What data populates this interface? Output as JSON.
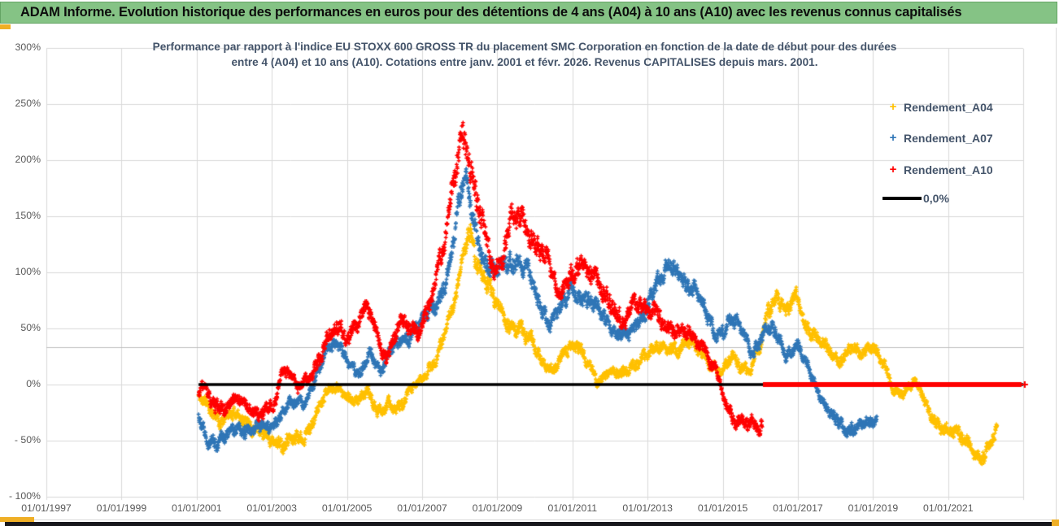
{
  "header": {
    "title": "ADAM Informe. Evolution historique des performances en euros pour des détentions de 4 ans (A04) à 10 ans (A10) avec les revenus connus capitalisés"
  },
  "chart_data": {
    "type": "scatter",
    "title_line1": "Performance par rapport à l'indice EU STOXX 600 GROSS TR  du placement SMC Corporation en fonction de la date de début pour des durées",
    "title_line2": "entre 4 (A04) et 10 ans (A10).  Cotations entre janv. 2001 et févr. 2026.  Revenus CAPITALISES depuis mars. 2001.",
    "xlabel": "",
    "ylabel": "",
    "ylim": [
      -100,
      300
    ],
    "grid": true,
    "legend_position": "right",
    "y_ticks": [
      {
        "label": "300%",
        "value": 300
      },
      {
        "label": "250%",
        "value": 250
      },
      {
        "label": "200%",
        "value": 200
      },
      {
        "label": "150%",
        "value": 150
      },
      {
        "label": "100%",
        "value": 100
      },
      {
        "label": "50%",
        "value": 50
      },
      {
        "label": "0%",
        "value": 0
      },
      {
        "label": "- 50%",
        "value": -50
      },
      {
        "label": "- 100%",
        "value": -100
      }
    ],
    "x_ticks": [
      {
        "label": "01/01/1997",
        "year": 1997
      },
      {
        "label": "01/01/1999",
        "year": 1999
      },
      {
        "label": "01/01/2001",
        "year": 2001
      },
      {
        "label": "01/01/2003",
        "year": 2003
      },
      {
        "label": "01/01/2005",
        "year": 2005
      },
      {
        "label": "01/01/2007",
        "year": 2007
      },
      {
        "label": "01/01/2009",
        "year": 2009
      },
      {
        "label": "01/01/2011",
        "year": 2011
      },
      {
        "label": "01/01/2013",
        "year": 2013
      },
      {
        "label": "01/01/2015",
        "year": 2015
      },
      {
        "label": "01/01/2017",
        "year": 2017
      },
      {
        "label": "01/01/2019",
        "year": 2019
      },
      {
        "label": "01/01/2021",
        "year": 2021
      }
    ],
    "x_gridline_years": [
      1997,
      1999,
      2001,
      2003,
      2005,
      2007,
      2009,
      2011,
      2013,
      2015,
      2017,
      2019,
      2021,
      2023
    ],
    "reference_lines": [
      {
        "name": "zero-line",
        "value": 0,
        "color": "#000000",
        "x_start": 2001.05,
        "x_end": 2023.0,
        "thickness": 3.5
      },
      {
        "name": "grey-33-line",
        "value": 33.5,
        "color": "#BFBFBF",
        "x_start": 1997,
        "x_end": 2023.0,
        "thickness": 1
      }
    ],
    "flat_segment": {
      "series": "Rendement_A10",
      "value": 0,
      "x_start": 2016.07,
      "x_end": 2022.95,
      "color": "#FF0000",
      "thickness": 6
    },
    "series": [
      {
        "name": "Rendement_A04",
        "color": "#FFC000",
        "marker": "+",
        "seed": 11,
        "points_per_year": 160,
        "jitter": 3.0,
        "wiggle": {
          "a1": 5,
          "f1": 0.9,
          "p1": 0.15,
          "a2": 2.5,
          "f2": 3.7,
          "p2": 0.6
        },
        "anchors": [
          [
            2001.05,
            -12
          ],
          [
            2001.3,
            -22
          ],
          [
            2001.6,
            -32
          ],
          [
            2001.9,
            -22
          ],
          [
            2002.1,
            -28
          ],
          [
            2002.4,
            -42
          ],
          [
            2002.7,
            -38
          ],
          [
            2003.0,
            -46
          ],
          [
            2003.3,
            -56
          ],
          [
            2003.6,
            -50
          ],
          [
            2003.9,
            -42
          ],
          [
            2004.1,
            -30
          ],
          [
            2004.4,
            -10
          ],
          [
            2004.7,
            -4
          ],
          [
            2005.0,
            -8
          ],
          [
            2005.3,
            -13
          ],
          [
            2005.55,
            -8
          ],
          [
            2005.8,
            -28
          ],
          [
            2006.1,
            -14
          ],
          [
            2006.4,
            -20
          ],
          [
            2006.7,
            -8
          ],
          [
            2007.0,
            4
          ],
          [
            2007.3,
            22
          ],
          [
            2007.6,
            45
          ],
          [
            2007.9,
            75
          ],
          [
            2008.1,
            115
          ],
          [
            2008.25,
            140
          ],
          [
            2008.45,
            115
          ],
          [
            2008.7,
            92
          ],
          [
            2009.0,
            68
          ],
          [
            2009.3,
            52
          ],
          [
            2009.6,
            55
          ],
          [
            2009.9,
            38
          ],
          [
            2010.2,
            15
          ],
          [
            2010.5,
            14
          ],
          [
            2010.8,
            35
          ],
          [
            2011.1,
            32
          ],
          [
            2011.4,
            18
          ],
          [
            2011.7,
            5
          ],
          [
            2012.0,
            14
          ],
          [
            2012.3,
            6
          ],
          [
            2012.6,
            15
          ],
          [
            2012.9,
            28
          ],
          [
            2013.2,
            34
          ],
          [
            2013.5,
            28
          ],
          [
            2013.8,
            32
          ],
          [
            2014.1,
            42
          ],
          [
            2014.4,
            28
          ],
          [
            2014.7,
            12
          ],
          [
            2015.0,
            16
          ],
          [
            2015.25,
            30
          ],
          [
            2015.5,
            12
          ],
          [
            2015.75,
            8
          ],
          [
            2016.0,
            38
          ],
          [
            2016.2,
            70
          ],
          [
            2016.45,
            80
          ],
          [
            2016.7,
            60
          ],
          [
            2016.95,
            78
          ],
          [
            2017.2,
            55
          ],
          [
            2017.5,
            45
          ],
          [
            2017.8,
            28
          ],
          [
            2018.1,
            18
          ],
          [
            2018.45,
            40
          ],
          [
            2018.7,
            28
          ],
          [
            2019.0,
            30
          ],
          [
            2019.3,
            18
          ],
          [
            2019.6,
            -5
          ],
          [
            2019.9,
            -8
          ],
          [
            2020.1,
            2
          ],
          [
            2020.4,
            -18
          ],
          [
            2020.7,
            -32
          ],
          [
            2021.0,
            -42
          ],
          [
            2021.3,
            -48
          ],
          [
            2021.6,
            -55
          ],
          [
            2021.9,
            -62
          ],
          [
            2022.1,
            -55
          ],
          [
            2022.3,
            -45
          ]
        ]
      },
      {
        "name": "Rendement_A07",
        "color": "#2E75B6",
        "marker": "+",
        "seed": 22,
        "points_per_year": 160,
        "jitter": 3.0,
        "wiggle": {
          "a1": 5,
          "f1": 1.1,
          "p1": 0.4,
          "a2": 2.5,
          "f2": 4.3,
          "p2": 0.1
        },
        "anchors": [
          [
            2001.05,
            -25
          ],
          [
            2001.3,
            -45
          ],
          [
            2001.55,
            -55
          ],
          [
            2001.8,
            -48
          ],
          [
            2002.1,
            -32
          ],
          [
            2002.4,
            -45
          ],
          [
            2002.7,
            -38
          ],
          [
            2003.0,
            -35
          ],
          [
            2003.3,
            -25
          ],
          [
            2003.6,
            -18
          ],
          [
            2003.9,
            -12
          ],
          [
            2004.2,
            8
          ],
          [
            2004.5,
            30
          ],
          [
            2004.8,
            40
          ],
          [
            2005.1,
            15
          ],
          [
            2005.35,
            5
          ],
          [
            2005.6,
            32
          ],
          [
            2005.9,
            12
          ],
          [
            2006.2,
            28
          ],
          [
            2006.5,
            42
          ],
          [
            2006.8,
            50
          ],
          [
            2007.1,
            58
          ],
          [
            2007.4,
            75
          ],
          [
            2007.7,
            105
          ],
          [
            2008.0,
            160
          ],
          [
            2008.15,
            182
          ],
          [
            2008.35,
            150
          ],
          [
            2008.6,
            118
          ],
          [
            2008.9,
            95
          ],
          [
            2009.2,
            108
          ],
          [
            2009.5,
            115
          ],
          [
            2009.8,
            98
          ],
          [
            2010.1,
            75
          ],
          [
            2010.4,
            58
          ],
          [
            2010.7,
            65
          ],
          [
            2011.0,
            85
          ],
          [
            2011.3,
            80
          ],
          [
            2011.6,
            68
          ],
          [
            2011.9,
            55
          ],
          [
            2012.2,
            48
          ],
          [
            2012.5,
            42
          ],
          [
            2012.8,
            55
          ],
          [
            2013.1,
            85
          ],
          [
            2013.4,
            95
          ],
          [
            2013.7,
            105
          ],
          [
            2014.0,
            95
          ],
          [
            2014.3,
            80
          ],
          [
            2014.6,
            58
          ],
          [
            2014.9,
            48
          ],
          [
            2015.2,
            55
          ],
          [
            2015.5,
            48
          ],
          [
            2015.8,
            30
          ],
          [
            2016.1,
            45
          ],
          [
            2016.4,
            48
          ],
          [
            2016.7,
            30
          ],
          [
            2017.0,
            32
          ],
          [
            2017.3,
            12
          ],
          [
            2017.55,
            -5
          ],
          [
            2017.8,
            -22
          ],
          [
            2018.0,
            -35
          ],
          [
            2018.3,
            -42
          ],
          [
            2018.6,
            -32
          ],
          [
            2018.9,
            -38
          ],
          [
            2019.1,
            -35
          ]
        ]
      },
      {
        "name": "Rendement_A10",
        "color": "#FF0000",
        "marker": "+",
        "seed": 33,
        "points_per_year": 160,
        "jitter": 3.5,
        "wiggle": {
          "a1": 6,
          "f1": 1.0,
          "p1": 0.7,
          "a2": 3,
          "f2": 3.1,
          "p2": 0.3
        },
        "anchors": [
          [
            2001.05,
            -5
          ],
          [
            2001.15,
            5
          ],
          [
            2001.35,
            -15
          ],
          [
            2001.6,
            -28
          ],
          [
            2001.85,
            -18
          ],
          [
            2002.05,
            -6
          ],
          [
            2002.3,
            -18
          ],
          [
            2002.6,
            -33
          ],
          [
            2002.9,
            -20
          ],
          [
            2003.1,
            -10
          ],
          [
            2003.3,
            15
          ],
          [
            2003.45,
            5
          ],
          [
            2003.7,
            -5
          ],
          [
            2003.95,
            8
          ],
          [
            2004.2,
            18
          ],
          [
            2004.5,
            38
          ],
          [
            2004.8,
            52
          ],
          [
            2005.05,
            45
          ],
          [
            2005.3,
            58
          ],
          [
            2005.55,
            65
          ],
          [
            2005.8,
            42
          ],
          [
            2006.05,
            28
          ],
          [
            2006.3,
            48
          ],
          [
            2006.55,
            52
          ],
          [
            2006.8,
            45
          ],
          [
            2007.05,
            62
          ],
          [
            2007.3,
            85
          ],
          [
            2007.6,
            120
          ],
          [
            2007.85,
            185
          ],
          [
            2008.05,
            235
          ],
          [
            2008.2,
            215
          ],
          [
            2008.4,
            165
          ],
          [
            2008.65,
            135
          ],
          [
            2008.9,
            105
          ],
          [
            2009.15,
            120
          ],
          [
            2009.4,
            148
          ],
          [
            2009.7,
            140
          ],
          [
            2010.0,
            132
          ],
          [
            2010.3,
            118
          ],
          [
            2010.6,
            75
          ],
          [
            2010.9,
            95
          ],
          [
            2011.15,
            115
          ],
          [
            2011.45,
            95
          ],
          [
            2011.75,
            85
          ],
          [
            2012.05,
            78
          ],
          [
            2012.35,
            52
          ],
          [
            2012.65,
            68
          ],
          [
            2012.95,
            72
          ],
          [
            2013.2,
            68
          ],
          [
            2013.5,
            45
          ],
          [
            2013.8,
            48
          ],
          [
            2014.05,
            55
          ],
          [
            2014.35,
            35
          ],
          [
            2014.65,
            18
          ],
          [
            2014.9,
            8
          ],
          [
            2015.1,
            -15
          ],
          [
            2015.35,
            -35
          ],
          [
            2015.6,
            -40
          ],
          [
            2015.85,
            -35
          ],
          [
            2016.05,
            -32
          ]
        ]
      }
    ],
    "legend": [
      {
        "label": "Rendement_A04",
        "color": "#FFC000",
        "marker": "+"
      },
      {
        "label": "Rendement_A07",
        "color": "#2E75B6",
        "marker": "+"
      },
      {
        "label": "Rendement_A10",
        "color": "#FF0000",
        "marker": "+"
      },
      {
        "label": "0,0%",
        "color": "#000000",
        "marker": "line"
      }
    ]
  },
  "colors": {
    "header_green": "#85C385",
    "accent_gold": "#EFAF26",
    "gridline": "#D9D9D9",
    "axis_text": "#595959",
    "title_text": "#44546A",
    "bottom_bar": "#17171C"
  }
}
